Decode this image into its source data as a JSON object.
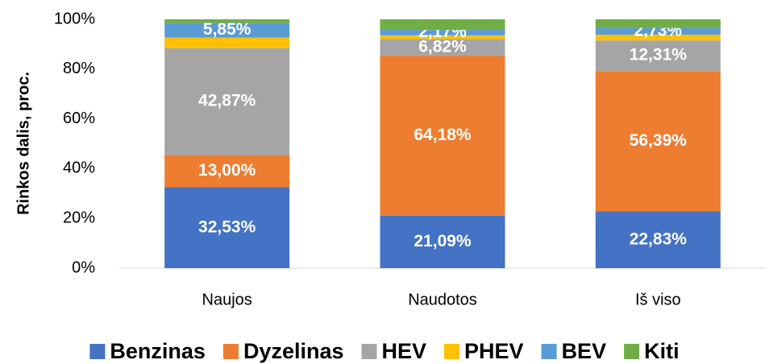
{
  "chart_data": {
    "type": "stacked-bar",
    "y_label": "Rinkos dalis, proc.",
    "categories": [
      "Naujos",
      "Naudotos",
      "Iš viso"
    ],
    "ylim": [
      0,
      100
    ],
    "yticks": [
      {
        "value": 0,
        "label": "0%"
      },
      {
        "value": 20,
        "label": "20%"
      },
      {
        "value": 40,
        "label": "40%"
      },
      {
        "value": 60,
        "label": "60%"
      },
      {
        "value": 80,
        "label": "80%"
      },
      {
        "value": 100,
        "label": "100%"
      }
    ],
    "legend": "bottom",
    "series": [
      {
        "name": "Benzinas",
        "color": "#4472c4",
        "values": [
          32.53,
          21.09,
          22.83
        ],
        "value_labels": [
          "32,53%",
          "21,09%",
          "22,83%"
        ]
      },
      {
        "name": "Dyzelinas",
        "color": "#ed7d31",
        "values": [
          13.0,
          64.18,
          56.39
        ],
        "value_labels": [
          "13,00%",
          "64,18%",
          "56,39%"
        ]
      },
      {
        "name": "HEV",
        "color": "#a5a5a5",
        "values": [
          42.87,
          6.82,
          12.31
        ],
        "value_labels": [
          "42,87%",
          "6,82%",
          "12,31%"
        ]
      },
      {
        "name": "PHEV",
        "color": "#ffc000",
        "values": [
          4.25,
          1.5,
          2.3
        ],
        "value_labels": [
          null,
          null,
          null
        ]
      },
      {
        "name": "BEV",
        "color": "#5b9bd5",
        "values": [
          5.85,
          2.17,
          2.73
        ],
        "value_labels": [
          "5,85%",
          "2,17%",
          "2,73%"
        ]
      },
      {
        "name": "Kiti",
        "color": "#70ad47",
        "values": [
          1.5,
          4.24,
          3.44
        ],
        "value_labels": [
          null,
          null,
          null
        ]
      }
    ]
  }
}
